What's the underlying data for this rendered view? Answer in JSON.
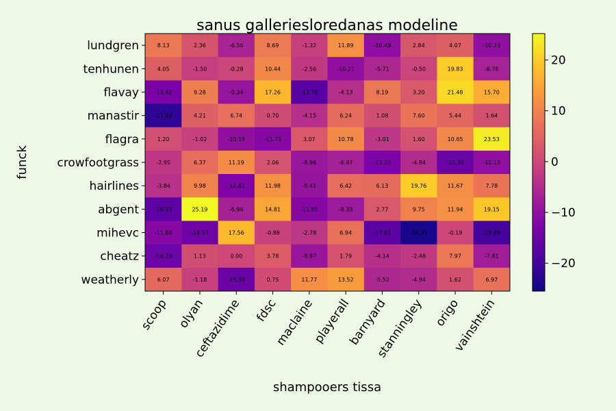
{
  "chart_data": {
    "type": "heatmap",
    "title": "sanus galleriesloredanas modeline",
    "xlabel": "shampooers tissa",
    "ylabel": "funck",
    "x_categories": [
      "scoop",
      "olyan",
      "ceftazidime",
      "fdsc",
      "maclaine",
      "playerall",
      "barnyard",
      "stanningley",
      "origo",
      "vainshtein"
    ],
    "y_categories": [
      "lundgren",
      "tenhunen",
      "flavay",
      "manastir",
      "flagra",
      "crowfootgrass",
      "hairlines",
      "abgent",
      "mihevc",
      "cheatz",
      "weatherly"
    ],
    "values": [
      [
        8.13,
        2.36,
        -6.56,
        8.69,
        -1.32,
        11.89,
        -10.49,
        2.84,
        4.07,
        -10.23
      ],
      [
        4.05,
        -1.5,
        -0.28,
        10.44,
        -2.56,
        -10.21,
        -5.71,
        -0.5,
        19.83,
        -6.76
      ],
      [
        -13.42,
        9.28,
        -9.34,
        17.26,
        -17.7,
        -4.13,
        8.19,
        3.2,
        21.48,
        15.7
      ],
      [
        -21.93,
        4.21,
        6.74,
        0.7,
        -4.15,
        6.24,
        1.08,
        7.6,
        5.44,
        1.64
      ],
      [
        1.2,
        -1.02,
        -10.19,
        -11.71,
        3.07,
        10.78,
        -3.01,
        1.6,
        10.65,
        23.53
      ],
      [
        -2.95,
        6.37,
        11.19,
        2.06,
        -8.96,
        -6.97,
        -13.2,
        -4.84,
        -15.3,
        -10.15
      ],
      [
        -3.84,
        9.98,
        -12.61,
        11.98,
        -9.41,
        6.42,
        6.13,
        19.76,
        11.67,
        7.78
      ],
      [
        -16.91,
        25.19,
        -6.96,
        14.81,
        -11.85,
        -8.33,
        2.77,
        9.75,
        11.94,
        19.15
      ],
      [
        -11.66,
        -14.57,
        17.56,
        -0.88,
        -2.78,
        6.94,
        -17.01,
        -24.35,
        -0.19,
        -19.85
      ],
      [
        -14.79,
        1.13,
        0.0,
        3.78,
        -8.97,
        1.79,
        -4.14,
        -2.48,
        7.97,
        -7.81
      ],
      [
        6.07,
        -1.18,
        -15.39,
        0.75,
        11.77,
        13.52,
        -5.52,
        -4.94,
        1.62,
        6.97
      ]
    ],
    "colormap": "plasma",
    "vmin": -25.5,
    "vmax": 25.2,
    "colorbar_ticks": [
      20,
      10,
      0,
      -10,
      -20
    ],
    "colorbar_tick_labels": [
      "20",
      "10",
      "0",
      "−10",
      "−20"
    ]
  }
}
